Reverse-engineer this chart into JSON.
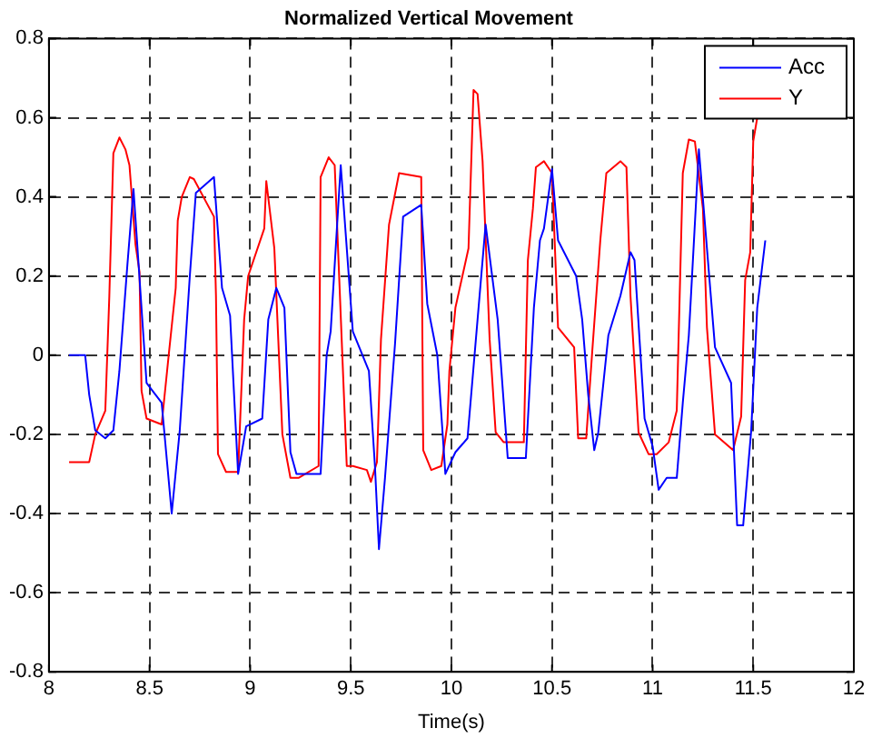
{
  "chart_data": {
    "type": "line",
    "title": "Normalized Vertical Movement",
    "xlabel": "Time(s)",
    "xlim": [
      8,
      12
    ],
    "xticks": [
      8,
      8.5,
      9,
      9.5,
      10,
      10.5,
      11,
      11.5,
      12
    ],
    "ylim": [
      -0.8,
      0.8
    ],
    "yticks": [
      -0.8,
      -0.6,
      -0.4,
      -0.2,
      0,
      0.2,
      0.4,
      0.6,
      0.8
    ],
    "grid": true,
    "legend": "top right",
    "line_style": "solid",
    "marker": "none",
    "series": [
      {
        "name": "Acc",
        "color": "#0000ff",
        "x": [
          8.1,
          8.18,
          8.2,
          8.23,
          8.28,
          8.32,
          8.35,
          8.39,
          8.42,
          8.44,
          8.485,
          8.56,
          8.61,
          8.65,
          8.7,
          8.73,
          8.82,
          8.86,
          8.9,
          8.94,
          8.98,
          9.06,
          9.09,
          9.13,
          9.17,
          9.2,
          9.23,
          9.35,
          9.38,
          9.4,
          9.45,
          9.51,
          9.59,
          9.62,
          9.64,
          9.67,
          9.72,
          9.76,
          9.85,
          9.88,
          9.93,
          9.97,
          10.02,
          10.08,
          10.17,
          10.23,
          10.28,
          10.37,
          10.41,
          10.44,
          10.46,
          10.5,
          10.53,
          10.62,
          10.65,
          10.68,
          10.71,
          10.73,
          10.78,
          10.84,
          10.89,
          10.91,
          10.96,
          11.0,
          11.03,
          11.07,
          11.12,
          11.15,
          11.18,
          11.23,
          11.27,
          11.31,
          11.39,
          11.42,
          11.45,
          11.49,
          11.52,
          11.56
        ],
        "values": [
          0,
          0,
          -0.1,
          -0.19,
          -0.21,
          -0.19,
          -0.04,
          0.23,
          0.42,
          0.27,
          -0.07,
          -0.12,
          -0.4,
          -0.19,
          0.2,
          0.41,
          0.45,
          0.17,
          0.1,
          -0.3,
          -0.18,
          -0.16,
          0.09,
          0.17,
          0.12,
          -0.245,
          -0.3,
          -0.3,
          0,
          0.06,
          0.48,
          0.06,
          -0.04,
          -0.28,
          -0.49,
          -0.31,
          0.03,
          0.35,
          0.38,
          0.13,
          0,
          -0.3,
          -0.245,
          -0.21,
          0.33,
          0.09,
          -0.26,
          -0.26,
          0.12,
          0.29,
          0.32,
          0.47,
          0.29,
          0.2,
          0.09,
          -0.1,
          -0.24,
          -0.195,
          0.05,
          0.15,
          0.26,
          0.24,
          -0.16,
          -0.23,
          -0.34,
          -0.31,
          -0.31,
          -0.12,
          0.05,
          0.52,
          0.27,
          0.02,
          -0.07,
          -0.43,
          -0.43,
          -0.19,
          0.12,
          0.29
        ]
      },
      {
        "name": "Y",
        "color": "#ff0000",
        "x": [
          8.1,
          8.2,
          8.23,
          8.28,
          8.3,
          8.32,
          8.35,
          8.38,
          8.4,
          8.43,
          8.45,
          8.46,
          8.485,
          8.56,
          8.595,
          8.63,
          8.64,
          8.66,
          8.7,
          8.72,
          8.82,
          8.83,
          8.84,
          8.88,
          8.94,
          8.97,
          8.99,
          9.07,
          9.08,
          9.12,
          9.16,
          9.2,
          9.24,
          9.34,
          9.35,
          9.39,
          9.42,
          9.48,
          9.51,
          9.58,
          9.6,
          9.63,
          9.65,
          9.69,
          9.74,
          9.85,
          9.86,
          9.9,
          9.95,
          9.98,
          9.99,
          10.02,
          10.085,
          10.11,
          10.13,
          10.155,
          10.19,
          10.22,
          10.26,
          10.36,
          10.38,
          10.405,
          10.42,
          10.46,
          10.5,
          10.53,
          10.61,
          10.63,
          10.67,
          10.7,
          10.74,
          10.77,
          10.84,
          10.87,
          10.89,
          10.93,
          10.98,
          11.02,
          11.08,
          11.12,
          11.15,
          11.18,
          11.21,
          11.25,
          11.27,
          11.31,
          11.4,
          11.44,
          11.46,
          11.485,
          11.5,
          11.52
        ],
        "values": [
          -0.27,
          -0.27,
          -0.2,
          -0.14,
          0.15,
          0.51,
          0.55,
          0.52,
          0.48,
          0.28,
          0.21,
          -0.09,
          -0.16,
          -0.175,
          0,
          0.17,
          0.34,
          0.4,
          0.45,
          0.445,
          0.35,
          0.15,
          -0.25,
          -0.295,
          -0.295,
          0.09,
          0.2,
          0.32,
          0.44,
          0.27,
          -0.2,
          -0.31,
          -0.31,
          -0.28,
          0.45,
          0.5,
          0.48,
          -0.28,
          -0.28,
          -0.29,
          -0.32,
          -0.27,
          0.04,
          0.33,
          0.46,
          0.45,
          -0.24,
          -0.29,
          -0.28,
          -0.175,
          -0.04,
          0.12,
          0.27,
          0.67,
          0.66,
          0.49,
          0.04,
          -0.195,
          -0.22,
          -0.22,
          0.24,
          0.37,
          0.475,
          0.49,
          0.46,
          0.07,
          0.02,
          -0.21,
          -0.21,
          0.01,
          0.29,
          0.46,
          0.49,
          0.475,
          0.15,
          -0.195,
          -0.25,
          -0.25,
          -0.22,
          -0.14,
          0.46,
          0.545,
          0.54,
          0.37,
          0.07,
          -0.2,
          -0.24,
          -0.155,
          0.19,
          0.26,
          0.54,
          0.6
        ]
      }
    ]
  }
}
